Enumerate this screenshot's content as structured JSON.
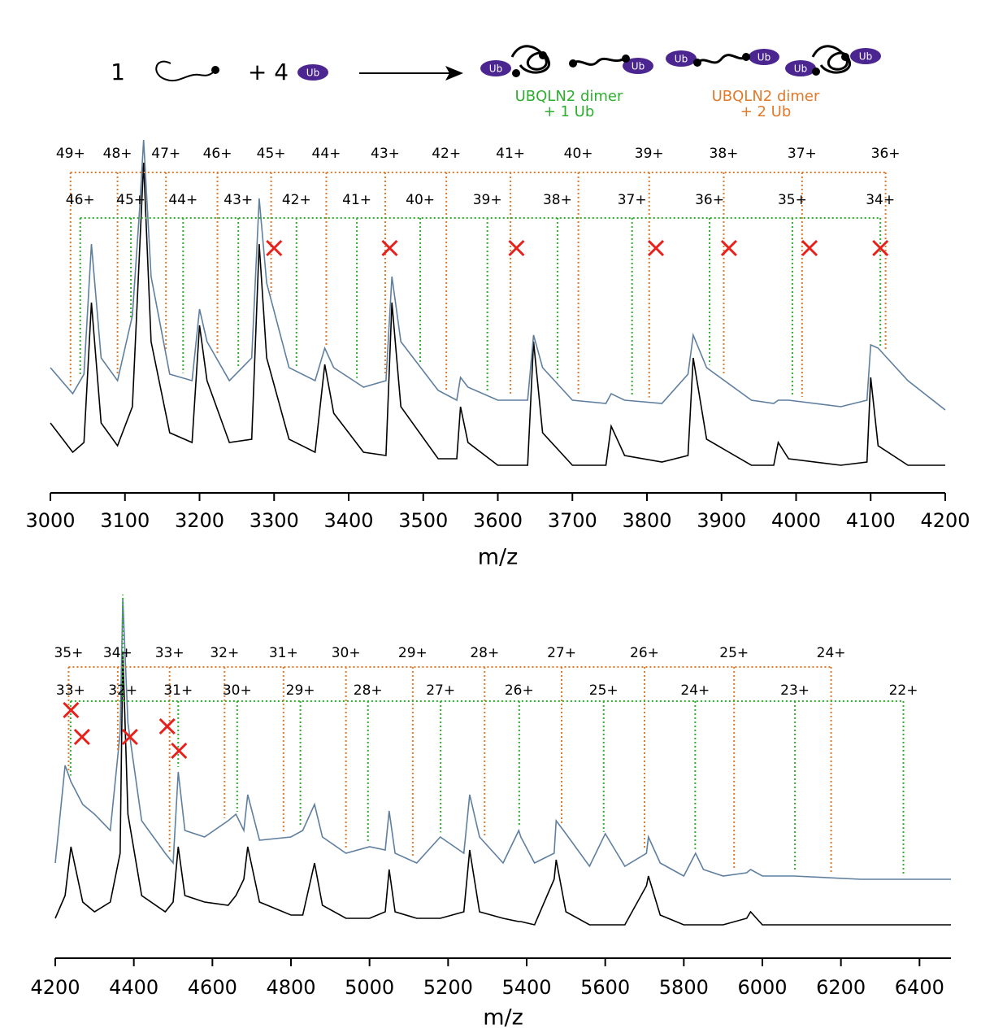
{
  "scheme": {
    "left": "1",
    "plus": "+ 4",
    "ub": "Ub",
    "product1": [
      "UBQLN2 dimer",
      "+ 1 Ub"
    ],
    "product2": [
      "UBQLN2 dimer",
      "+ 2 Ub"
    ]
  },
  "chart_data": [
    {
      "type": "line",
      "x_label": "m/z",
      "xlim": [
        3000,
        4200
      ],
      "xticks": [
        3000,
        3100,
        3200,
        3300,
        3400,
        3500,
        3600,
        3700,
        3800,
        3900,
        4000,
        4100,
        4200
      ],
      "series": [
        {
          "color": "#000000",
          "x": [
            3000,
            3030,
            3045,
            3055,
            3068,
            3090,
            3110,
            3120,
            3125,
            3135,
            3160,
            3190,
            3200,
            3210,
            3240,
            3270,
            3280,
            3290,
            3320,
            3355,
            3368,
            3380,
            3420,
            3450,
            3458,
            3470,
            3520,
            3545,
            3550,
            3560,
            3600,
            3640,
            3648,
            3660,
            3700,
            3745,
            3752,
            3770,
            3820,
            3855,
            3862,
            3880,
            3940,
            3970,
            3976,
            3990,
            4060,
            4095,
            4100,
            4110,
            4150,
            4200
          ],
          "values": [
            15,
            6,
            9,
            52,
            15,
            8,
            20,
            70,
            95,
            40,
            12,
            9,
            45,
            28,
            9,
            10,
            70,
            35,
            10,
            6,
            33,
            18,
            6,
            5,
            52,
            20,
            4,
            4,
            20,
            9,
            2,
            2,
            40,
            12,
            2,
            2,
            14,
            5,
            3,
            5,
            35,
            10,
            2,
            2,
            9,
            4,
            2,
            3,
            29,
            8,
            2,
            2
          ]
        },
        {
          "color": "#5f7f9f",
          "x": [
            3000,
            3030,
            3045,
            3055,
            3068,
            3090,
            3110,
            3120,
            3125,
            3135,
            3160,
            3190,
            3200,
            3210,
            3240,
            3270,
            3280,
            3290,
            3320,
            3355,
            3368,
            3380,
            3420,
            3450,
            3458,
            3470,
            3520,
            3545,
            3550,
            3560,
            3600,
            3640,
            3648,
            3660,
            3700,
            3745,
            3752,
            3770,
            3820,
            3855,
            3862,
            3880,
            3940,
            3970,
            3976,
            3990,
            4060,
            4095,
            4100,
            4110,
            4150,
            4200
          ],
          "values": [
            32,
            24,
            30,
            70,
            35,
            28,
            48,
            82,
            102,
            60,
            30,
            28,
            50,
            40,
            28,
            35,
            84,
            58,
            32,
            28,
            38,
            32,
            26,
            28,
            60,
            40,
            25,
            22,
            29,
            26,
            22,
            22,
            42,
            32,
            22,
            21,
            24,
            22,
            21,
            30,
            42,
            32,
            22,
            21,
            22,
            22,
            20,
            22,
            39,
            38,
            28,
            19
          ]
        }
      ],
      "charge_states": [
        {
          "color": "#e07a2c",
          "labels": [
            "49+",
            "48+",
            "47+",
            "46+",
            "45+",
            "44+",
            "43+",
            "42+",
            "41+",
            "40+",
            "39+",
            "38+",
            "37+",
            "36+"
          ],
          "x": [
            3027,
            3090,
            3155,
            3224,
            3296,
            3370,
            3449,
            3531,
            3617,
            3708,
            3803,
            3903,
            4008,
            4120
          ]
        },
        {
          "color": "#2fae2f",
          "labels": [
            "46+",
            "45+",
            "44+",
            "43+",
            "42+",
            "41+",
            "40+",
            "39+",
            "38+",
            "37+",
            "36+",
            "35+",
            "34+"
          ],
          "x": [
            3040,
            3108,
            3178,
            3252,
            3330,
            3411,
            3496,
            3586,
            3680,
            3780,
            3884,
            3995,
            4113
          ]
        }
      ],
      "crosses": {
        "color": "#e8201c",
        "x": [
          3300,
          3455,
          3625,
          3812,
          3910,
          4018,
          4113
        ]
      }
    },
    {
      "type": "line",
      "x_label": "m/z",
      "xlim": [
        4200,
        6480
      ],
      "xticks": [
        4200,
        4400,
        4600,
        4800,
        5000,
        5200,
        5400,
        5600,
        5800,
        6000,
        6200,
        6400
      ],
      "series": [
        {
          "color": "#000000",
          "x": [
            4200,
            4225,
            4240,
            4270,
            4300,
            4340,
            4365,
            4372,
            4385,
            4420,
            4480,
            4500,
            4513,
            4530,
            4580,
            4640,
            4660,
            4680,
            4690,
            4720,
            4800,
            4830,
            4860,
            4880,
            4940,
            5000,
            5040,
            5050,
            5065,
            5120,
            5180,
            5240,
            5255,
            5280,
            5340,
            5380,
            5385,
            5420,
            5470,
            5475,
            5500,
            5560,
            5600,
            5650,
            5705,
            5710,
            5740,
            5800,
            5830,
            5850,
            5900,
            5960,
            5970,
            6000,
            6080,
            6250,
            6480
          ],
          "values": [
            4,
            11,
            26,
            9,
            6,
            9,
            24,
            86,
            36,
            11,
            6,
            9,
            26,
            11,
            9,
            8,
            11,
            16,
            26,
            9,
            5,
            5,
            21,
            8,
            4,
            4,
            6,
            19,
            6,
            4,
            4,
            6,
            25,
            6,
            4,
            3,
            3,
            2,
            16,
            22,
            6,
            2,
            2,
            2,
            14,
            17,
            5,
            2,
            2,
            2,
            2,
            4,
            6,
            2,
            2,
            2,
            2
          ]
        },
        {
          "color": "#5f7f9f",
          "x": [
            4200,
            4225,
            4240,
            4270,
            4300,
            4340,
            4365,
            4372,
            4385,
            4420,
            4480,
            4500,
            4513,
            4530,
            4580,
            4640,
            4660,
            4680,
            4690,
            4720,
            4800,
            4830,
            4860,
            4880,
            4940,
            5000,
            5040,
            5050,
            5065,
            5120,
            5180,
            5240,
            5255,
            5280,
            5340,
            5380,
            5385,
            5420,
            5470,
            5475,
            5500,
            5560,
            5600,
            5650,
            5705,
            5710,
            5740,
            5800,
            5830,
            5850,
            5900,
            5960,
            5970,
            6000,
            6080,
            6250,
            6480
          ],
          "values": [
            21,
            51,
            46,
            39,
            36,
            31,
            61,
            102,
            64,
            34,
            24,
            21,
            49,
            31,
            29,
            34,
            36,
            31,
            42,
            28,
            29,
            31,
            39,
            29,
            24,
            26,
            25,
            37,
            24,
            21,
            29,
            24,
            42,
            29,
            21,
            31,
            29,
            21,
            24,
            34,
            30,
            20,
            30,
            20,
            24,
            29,
            21,
            17,
            24,
            19,
            17,
            18,
            19,
            17,
            17,
            16,
            16
          ]
        }
      ],
      "charge_states": [
        {
          "color": "#e07a2c",
          "labels": [
            "35+",
            "34+",
            "33+",
            "32+",
            "31+",
            "30+",
            "29+",
            "28+",
            "27+",
            "26+",
            "25+",
            "24+"
          ],
          "x": [
            4234,
            4359,
            4491,
            4631,
            4781,
            4940,
            5110,
            5293,
            5489,
            5700,
            5928,
            6175
          ]
        },
        {
          "color": "#2fae2f",
          "labels": [
            "33+",
            "32+",
            "31+",
            "30+",
            "29+",
            "28+",
            "27+",
            "26+",
            "25+",
            "24+",
            "23+",
            "22+"
          ],
          "x": [
            4239,
            4372,
            4513,
            4663,
            4824,
            4996,
            5181,
            5381,
            5596,
            5829,
            6083,
            6359
          ]
        }
      ],
      "crosses": {
        "color": "#e8201c",
        "x": [
          4240,
          4268,
          4390,
          4485,
          4515
        ]
      }
    }
  ]
}
